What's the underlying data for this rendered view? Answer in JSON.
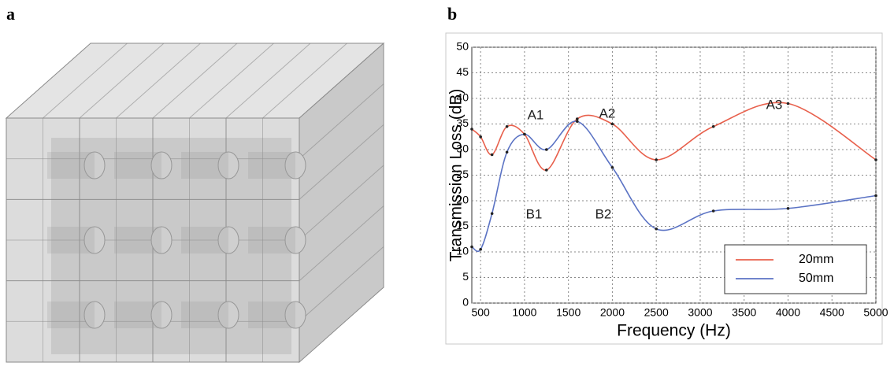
{
  "panel_labels": [
    "a",
    "b"
  ],
  "chart_data": {
    "type": "line",
    "xlabel": "Frequency (Hz)",
    "ylabel": "Transmission Loss (dB)",
    "x": [
      400,
      500,
      630,
      800,
      1000,
      1250,
      1600,
      2000,
      2500,
      3150,
      4000,
      5000
    ],
    "series": [
      {
        "name": "20mm",
        "color": "#e8604c",
        "values": [
          34,
          32.5,
          29,
          34.5,
          33,
          26,
          36,
          35,
          28,
          34.5,
          39,
          28
        ]
      },
      {
        "name": "50mm",
        "color": "#5b73c4",
        "values": [
          11,
          10.5,
          17.5,
          29.5,
          33,
          30,
          35.5,
          26.5,
          14.5,
          18,
          18.5,
          21
        ]
      }
    ],
    "annotations": [
      "A1",
      "A2",
      "A3",
      "B1",
      "B2"
    ],
    "xlim": [
      400,
      5000
    ],
    "xticks": [
      500,
      1000,
      1500,
      2000,
      2500,
      3000,
      3500,
      4000,
      4500,
      5000
    ],
    "ylim": [
      0,
      50
    ],
    "yticks": [
      0,
      5,
      10,
      15,
      20,
      25,
      30,
      35,
      40,
      45,
      50
    ],
    "grid": true,
    "legend": "lower right"
  }
}
